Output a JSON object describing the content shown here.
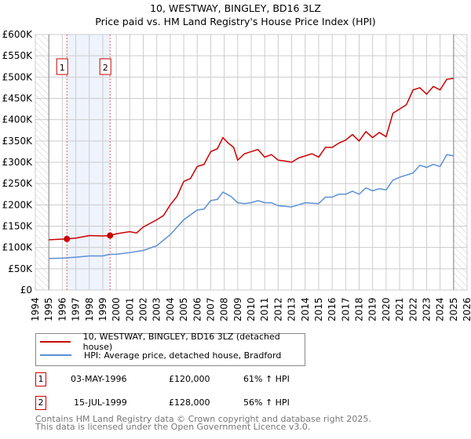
{
  "title": "10, WESTWAY, BINGLEY, BD16 3LZ",
  "subtitle": "Price paid vs. HM Land Registry's House Price Index (HPI)",
  "chart_data": {
    "type": "line",
    "title": "10, WESTWAY, BINGLEY, BD16 3LZ — Price paid vs. HM Land Registry's House Price Index (HPI)",
    "xlim": [
      1994,
      2026
    ],
    "ylim": [
      0,
      600000
    ],
    "x_ticks": [
      "1994",
      "1995",
      "1996",
      "1997",
      "1998",
      "1999",
      "2000",
      "2001",
      "2002",
      "2003",
      "2004",
      "2005",
      "2006",
      "2007",
      "2008",
      "2009",
      "2010",
      "2011",
      "2012",
      "2013",
      "2014",
      "2015",
      "2016",
      "2017",
      "2018",
      "2019",
      "2020",
      "2021",
      "2022",
      "2023",
      "2024",
      "2025",
      "2026"
    ],
    "y_ticks": [
      {
        "v": 0,
        "label": "£0"
      },
      {
        "v": 50000,
        "label": "£50K"
      },
      {
        "v": 100000,
        "label": "£100K"
      },
      {
        "v": 150000,
        "label": "£150K"
      },
      {
        "v": 200000,
        "label": "£200K"
      },
      {
        "v": 250000,
        "label": "£250K"
      },
      {
        "v": 300000,
        "label": "£300K"
      },
      {
        "v": 350000,
        "label": "£350K"
      },
      {
        "v": 400000,
        "label": "£400K"
      },
      {
        "v": 450000,
        "label": "£450K"
      },
      {
        "v": 500000,
        "label": "£500K"
      },
      {
        "v": 550000,
        "label": "£550K"
      },
      {
        "v": 600000,
        "label": "£600K"
      }
    ],
    "grid": true,
    "series": [
      {
        "name": "10, WESTWAY, BINGLEY, BD16 3LZ (detached house)",
        "color": "#cc0000",
        "x": [
          1995,
          1996.34,
          1997,
          1998,
          1999,
          1999.54,
          2000,
          2001,
          2001.5,
          2002,
          2003,
          2003.5,
          2004,
          2004.5,
          2005,
          2005.5,
          2006,
          2006.5,
          2007,
          2007.5,
          2007.9,
          2008.3,
          2008.7,
          2009,
          2009.5,
          2010,
          2010.5,
          2011,
          2011.5,
          2012,
          2012.5,
          2013,
          2013.5,
          2014,
          2014.5,
          2015,
          2015.5,
          2016,
          2016.5,
          2017,
          2017.5,
          2018,
          2018.5,
          2019,
          2019.5,
          2020,
          2020.5,
          2021,
          2021.5,
          2022,
          2022.5,
          2023,
          2023.5,
          2024,
          2024.5,
          2025
        ],
        "y": [
          118000,
          120000,
          122000,
          128000,
          127000,
          128000,
          132000,
          137000,
          134000,
          148000,
          165000,
          175000,
          200000,
          220000,
          255000,
          262000,
          290000,
          295000,
          325000,
          332000,
          358000,
          345000,
          335000,
          305000,
          320000,
          325000,
          330000,
          312000,
          318000,
          305000,
          303000,
          300000,
          310000,
          315000,
          320000,
          312000,
          335000,
          335000,
          345000,
          352000,
          365000,
          350000,
          372000,
          358000,
          370000,
          360000,
          415000,
          425000,
          435000,
          470000,
          475000,
          460000,
          478000,
          470000,
          495000,
          497000
        ]
      },
      {
        "name": "HPI: Average price, detached house, Bradford",
        "color": "#5b8fd4",
        "x": [
          1995,
          1996,
          1997,
          1998,
          1999,
          1999.5,
          2000,
          2001,
          2002,
          2003,
          2004,
          2005,
          2006,
          2006.5,
          2007,
          2007.5,
          2007.9,
          2008.5,
          2009,
          2009.5,
          2010,
          2010.5,
          2011,
          2011.5,
          2012,
          2013,
          2013.5,
          2014,
          2015,
          2015.5,
          2016,
          2016.5,
          2017,
          2017.5,
          2018,
          2018.5,
          2019,
          2019.5,
          2020,
          2020.5,
          2021,
          2022,
          2022.5,
          2023,
          2023.5,
          2024,
          2024.5,
          2025
        ],
        "y": [
          74000,
          75000,
          77000,
          80000,
          80000,
          84000,
          84000,
          88000,
          93000,
          104000,
          130000,
          165000,
          188000,
          190000,
          210000,
          213000,
          230000,
          220000,
          205000,
          203000,
          205000,
          210000,
          205000,
          205000,
          198000,
          195000,
          200000,
          205000,
          203000,
          218000,
          218000,
          225000,
          225000,
          232000,
          225000,
          240000,
          233000,
          238000,
          235000,
          258000,
          265000,
          275000,
          293000,
          288000,
          295000,
          290000,
          318000,
          315000
        ]
      }
    ],
    "annotations": [
      {
        "label": "1",
        "x": 1996.34,
        "y": 120000
      },
      {
        "label": "2",
        "x": 1999.54,
        "y": 128000
      }
    ]
  },
  "legend": [
    {
      "label": "10, WESTWAY, BINGLEY, BD16 3LZ (detached house)",
      "color": "#cc0000"
    },
    {
      "label": "HPI: Average price, detached house, Bradford",
      "color": "#5b8fd4"
    }
  ],
  "sales": [
    {
      "num": "1",
      "date": "03-MAY-1996",
      "price": "£120,000",
      "hpi": "61% ↑ HPI"
    },
    {
      "num": "2",
      "date": "15-JUL-1999",
      "price": "£128,000",
      "hpi": "56% ↑ HPI"
    }
  ],
  "footer": [
    "Contains HM Land Registry data © Crown copyright and database right 2025.",
    "This data is licensed under the Open Government Licence v3.0."
  ]
}
